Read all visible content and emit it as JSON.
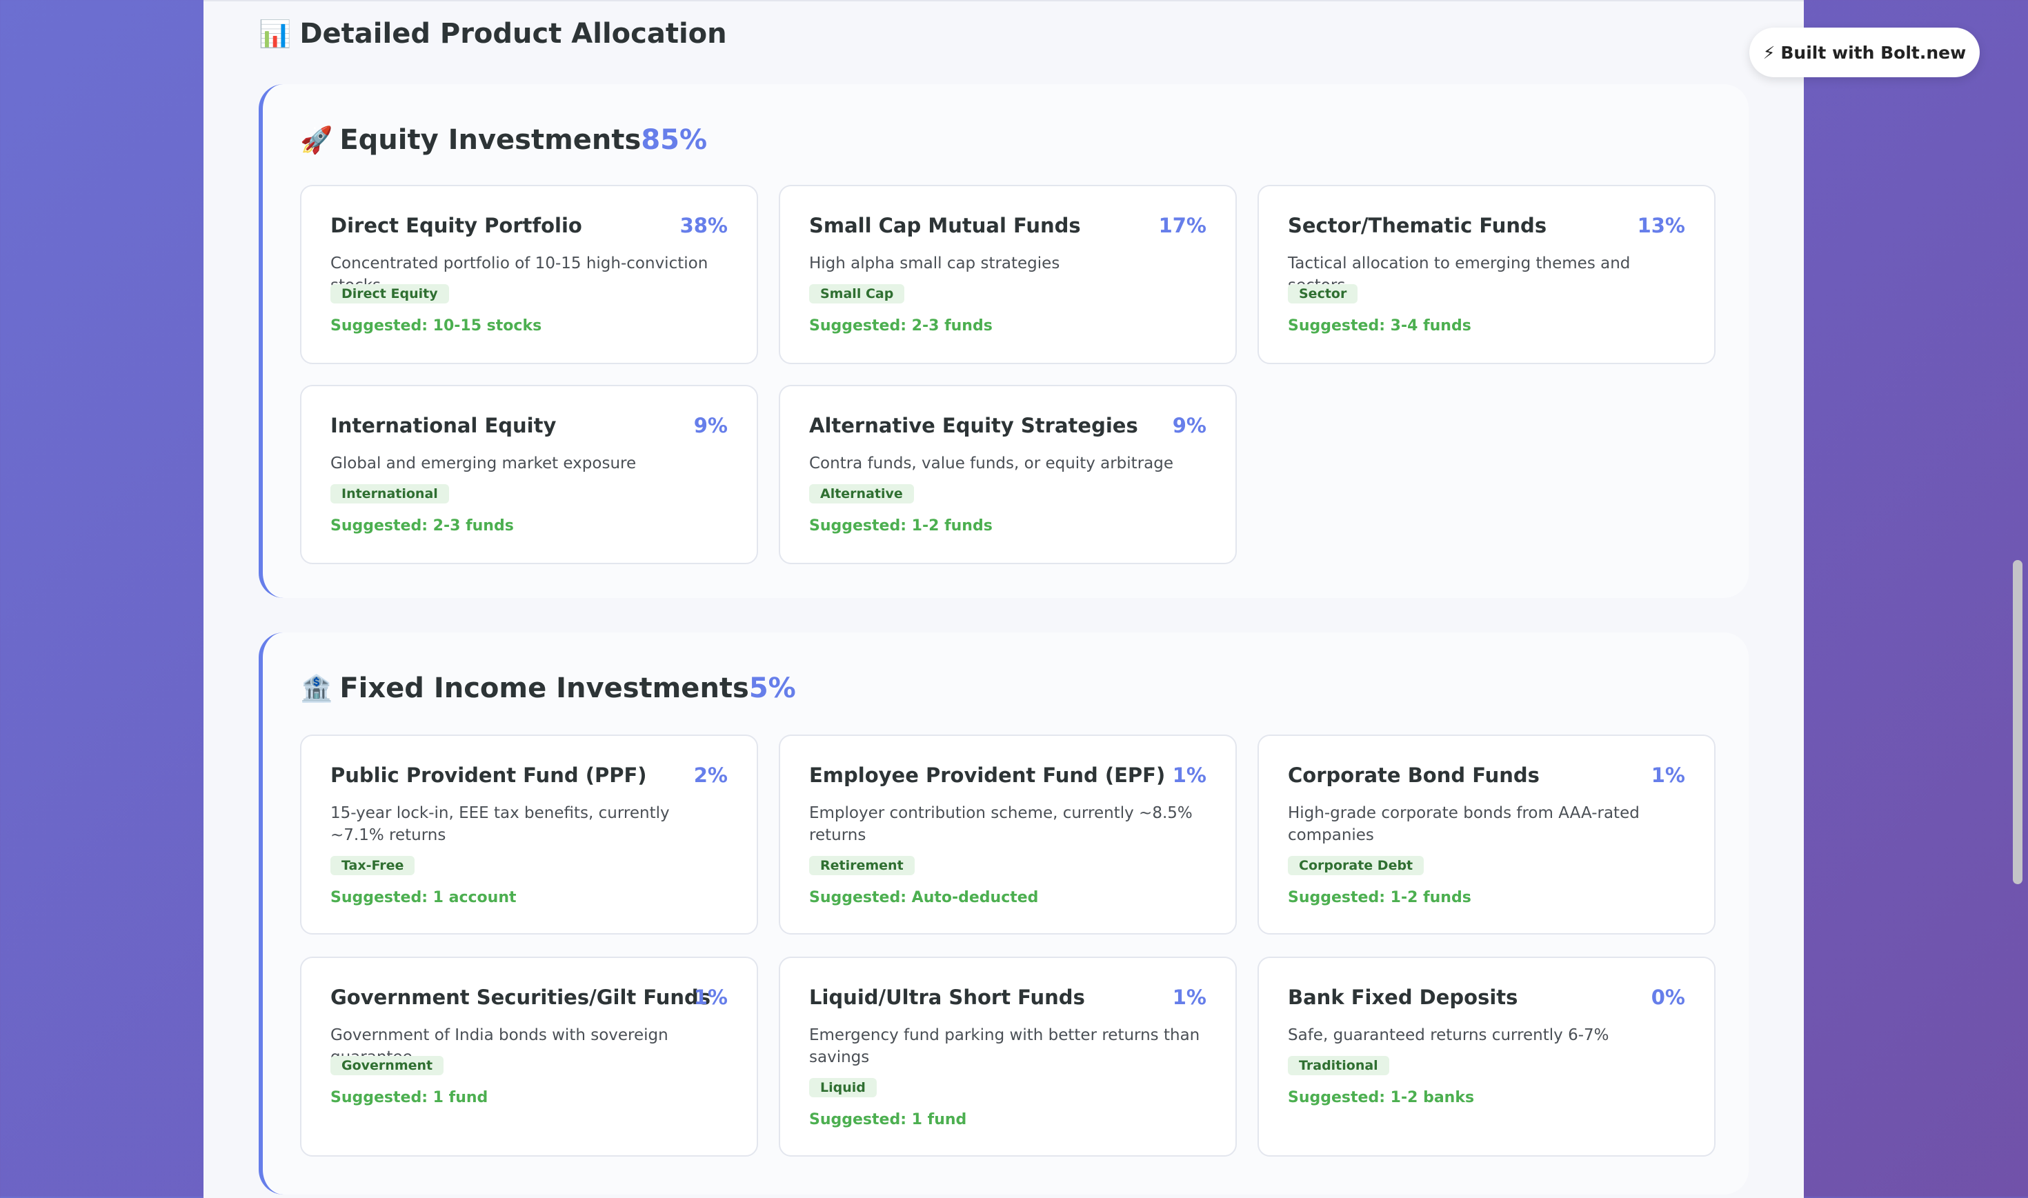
{
  "page": {
    "title_icon": "📊",
    "title": "Detailed Product Allocation"
  },
  "badge": {
    "icon": "⚡",
    "label": "Built with Bolt.new"
  },
  "sections": [
    {
      "icon": "🚀",
      "title": "Equity Investments",
      "percent": "85%",
      "cards": [
        {
          "title": "Direct Equity Portfolio",
          "percent": "38%",
          "description": "Concentrated portfolio of 10-15 high-conviction stocks",
          "tag": "Direct Equity",
          "suggested": "Suggested: 10-15 stocks"
        },
        {
          "title": "Small Cap Mutual Funds",
          "percent": "17%",
          "description": "High alpha small cap strategies",
          "tag": "Small Cap",
          "suggested": "Suggested: 2-3 funds"
        },
        {
          "title": "Sector/Thematic Funds",
          "percent": "13%",
          "description": "Tactical allocation to emerging themes and sectors",
          "tag": "Sector",
          "suggested": "Suggested: 3-4 funds"
        },
        {
          "title": "International Equity",
          "percent": "9%",
          "description": "Global and emerging market exposure",
          "tag": "International",
          "suggested": "Suggested: 2-3 funds"
        },
        {
          "title": "Alternative Equity Strategies",
          "percent": "9%",
          "description": "Contra funds, value funds, or equity arbitrage",
          "tag": "Alternative",
          "suggested": "Suggested: 1-2 funds"
        }
      ]
    },
    {
      "icon": "🏦",
      "title": "Fixed Income Investments",
      "percent": "5%",
      "cards": [
        {
          "title": "Public Provident Fund (PPF)",
          "percent": "2%",
          "description": "15-year lock-in, EEE tax benefits, currently ~7.1% returns",
          "tag": "Tax-Free",
          "suggested": "Suggested: 1 account"
        },
        {
          "title": "Employee Provident Fund (EPF)",
          "percent": "1%",
          "description": "Employer contribution scheme, currently ~8.5% returns",
          "tag": "Retirement",
          "suggested": "Suggested: Auto-deducted"
        },
        {
          "title": "Corporate Bond Funds",
          "percent": "1%",
          "description": "High-grade corporate bonds from AAA-rated companies",
          "tag": "Corporate Debt",
          "suggested": "Suggested: 1-2 funds"
        },
        {
          "title": "Government Securities/Gilt Funds",
          "percent": "1%",
          "description": "Government of India bonds with sovereign guarantee",
          "tag": "Government",
          "suggested": "Suggested: 1 fund"
        },
        {
          "title": "Liquid/Ultra Short Funds",
          "percent": "1%",
          "description": "Emergency fund parking with better returns than savings",
          "tag": "Liquid",
          "suggested": "Suggested: 1 fund"
        },
        {
          "title": "Bank Fixed Deposits",
          "percent": "0%",
          "description": "Safe, guaranteed returns currently 6-7%",
          "tag": "Traditional",
          "suggested": "Suggested: 1-2 banks"
        }
      ]
    }
  ]
}
